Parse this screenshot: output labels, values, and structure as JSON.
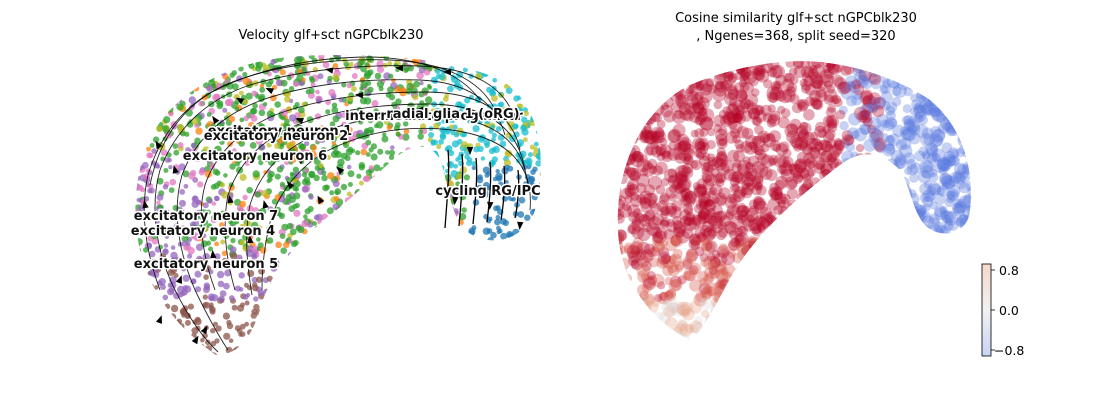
{
  "chart_data": [
    {
      "type": "scatter",
      "title": "Velocity glf+sct nGPCblk230",
      "cluster_labels": [
        "radial glia 1 (oRG)",
        "intermediate progenitor",
        "excitatory neuron 1",
        "excitatory neuron 2",
        "excitatory neuron 6",
        "cycling RG/IPC",
        "excitatory neuron 7",
        "excitatory neuron 4",
        "excitatory neuron 5"
      ],
      "colors": {
        "orange": "#ff7f0e",
        "green": "#2ca02c",
        "olive": "#bcbd22",
        "purple": "#9467bd",
        "pink": "#e377c2",
        "brown": "#8c564b",
        "cyan": "#17becf",
        "blue": "#1f77b4",
        "arrows": "#000000"
      }
    },
    {
      "type": "scatter",
      "title": "Cosine similarity glf+sct nGPCblk230",
      "subtitle": ", Ngenes=368, split seed=320",
      "colorbar": {
        "ticks": [
          "0.8",
          "0.0",
          "−0.8"
        ],
        "range": [
          -0.9,
          0.9
        ],
        "colormap": "coolwarm"
      },
      "colors": {
        "high": "#b40426",
        "mid": "#dddddd",
        "low": "#3b4cc0",
        "low_points": "#5b7be0"
      }
    }
  ]
}
